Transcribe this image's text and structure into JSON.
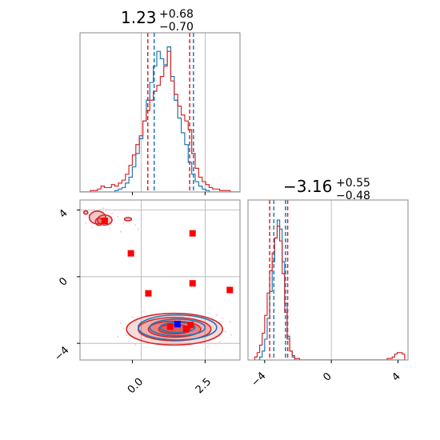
{
  "chart_data": {
    "type": "corner",
    "parameters": [
      {
        "title_value": "1.23",
        "title_plus": "+0.68",
        "title_minus": "−0.70",
        "range": [
          -1.8,
          3.7
        ],
        "ticks": [
          {
            "value": 0.0,
            "label": "0.0"
          },
          {
            "value": 2.5,
            "label": "2.5"
          }
        ],
        "hist_red": {
          "start": -1.8,
          "bin": 0.12,
          "counts": [
            0,
            0,
            0,
            0.01,
            0.01,
            0.02,
            0.04,
            0.03,
            0.03,
            0.05,
            0.04,
            0.06,
            0.08,
            0.12,
            0.18,
            0.25,
            0.32,
            0.38,
            0.48,
            0.55,
            0.62,
            0.68,
            0.72,
            0.78,
            0.85,
            0.95,
            0.75,
            0.66,
            0.58,
            0.52,
            0.48,
            0.42,
            0.26,
            0.16,
            0.1,
            0.07,
            0.05,
            0.03,
            0.02,
            0.02,
            0.01,
            0.01,
            0.01,
            0,
            0,
            0
          ]
        },
        "hist_blue": {
          "start": -1.8,
          "bin": 0.12,
          "counts": [
            0,
            0,
            0,
            0,
            0,
            0,
            0,
            0,
            0,
            0,
            0.01,
            0.02,
            0.03,
            0.06,
            0.1,
            0.17,
            0.26,
            0.36,
            0.48,
            0.62,
            0.74,
            0.85,
            0.95,
            0.9,
            0.86,
            0.98,
            0.78,
            0.62,
            0.5,
            0.4,
            0.32,
            0.2,
            0.12,
            0.07,
            0.04,
            0.02,
            0.01,
            0,
            0,
            0,
            0,
            0,
            0,
            0,
            0,
            0
          ]
        },
        "quantiles_red": [
          0.53,
          1.97
        ],
        "quantiles_blue": [
          0.75,
          2.1
        ],
        "grid_lines": [
          0.3,
          2.5
        ]
      },
      {
        "title_value": "−3.16",
        "title_plus": "+0.55",
        "title_minus": "−0.48",
        "range": [
          -5.0,
          4.6
        ],
        "ticks": [
          {
            "value": -4,
            "label": "−4"
          },
          {
            "value": 0,
            "label": "0"
          },
          {
            "value": 4,
            "label": "4"
          }
        ],
        "hist_red": {
          "start": -4.6,
          "bin": 0.15,
          "counts": [
            0.02,
            0.05,
            0.1,
            0.18,
            0.3,
            0.45,
            0.6,
            0.72,
            0.82,
            0.9,
            0.8,
            0.58,
            0.32,
            0.14,
            0.06,
            0.03,
            0.01,
            0.01,
            0,
            0,
            0,
            0,
            0,
            0,
            0,
            0,
            0,
            0,
            0,
            0,
            0,
            0,
            0,
            0,
            0,
            0,
            0,
            0,
            0,
            0,
            0,
            0,
            0,
            0,
            0,
            0,
            0,
            0,
            0,
            0,
            0,
            0,
            0,
            0.01,
            0.01,
            0.02,
            0.04,
            0.05,
            0.05,
            0.04
          ]
        },
        "hist_blue": {
          "start": -4.6,
          "bin": 0.15,
          "counts": [
            0,
            0,
            0.02,
            0.06,
            0.14,
            0.28,
            0.46,
            0.66,
            0.82,
            0.94,
            0.88,
            0.66,
            0.38,
            0.16,
            0.06,
            0.02,
            0,
            0,
            0,
            0,
            0,
            0,
            0,
            0,
            0,
            0,
            0,
            0,
            0,
            0,
            0,
            0,
            0,
            0,
            0,
            0,
            0,
            0,
            0,
            0,
            0,
            0,
            0,
            0,
            0,
            0,
            0,
            0,
            0,
            0,
            0,
            0,
            0,
            0,
            0,
            0,
            0,
            0,
            0,
            0
          ]
        },
        "quantiles_red": [
          -3.7,
          -2.62
        ],
        "quantiles_blue": [
          -3.45,
          -2.75
        ],
        "grid_lines": [
          0
        ]
      }
    ],
    "joint": {
      "x_range": [
        -1.8,
        3.7
      ],
      "y_range": [
        -5.0,
        4.6
      ],
      "y_ticks": [
        {
          "value": 4,
          "label": "4"
        },
        {
          "value": 0,
          "label": "0"
        },
        {
          "value": -4,
          "label": "−4"
        }
      ],
      "grid_x": [
        0.3,
        2.5
      ],
      "grid_y": [
        4,
        0,
        -4
      ],
      "contours_red": [
        {
          "cx": 1.45,
          "cy": -3.15,
          "rx": 1.65,
          "ry": 0.95,
          "alpha": 0.3
        },
        {
          "cx": 1.45,
          "cy": -3.15,
          "rx": 1.25,
          "ry": 0.7,
          "alpha": 0.45
        },
        {
          "cx": 1.45,
          "cy": -3.15,
          "rx": 0.9,
          "ry": 0.48,
          "alpha": 0.6
        },
        {
          "cx": 1.45,
          "cy": -3.15,
          "rx": 0.55,
          "ry": 0.28,
          "alpha": 0.75
        }
      ],
      "contours_blue": [
        {
          "cx": 1.55,
          "cy": -3.05,
          "rx": 1.35,
          "ry": 0.75
        },
        {
          "cx": 1.55,
          "cy": -3.05,
          "rx": 0.95,
          "ry": 0.5
        },
        {
          "cx": 1.55,
          "cy": -3.05,
          "rx": 0.6,
          "ry": 0.3
        }
      ],
      "island_contours_red": [
        {
          "cx": -1.2,
          "cy": 3.55,
          "rx": 0.28,
          "ry": 0.38
        },
        {
          "cx": -1.15,
          "cy": 3.3,
          "rx": 0.12,
          "ry": 0.22
        },
        {
          "cx": -0.95,
          "cy": 3.4,
          "rx": 0.25,
          "ry": 0.3
        },
        {
          "cx": -0.15,
          "cy": 3.45,
          "rx": 0.12,
          "ry": 0.1
        },
        {
          "cx": -1.6,
          "cy": 3.85,
          "rx": 0.07,
          "ry": 0.1
        }
      ],
      "markers_red": [
        {
          "x": 2.07,
          "y": 2.6
        },
        {
          "x": -0.05,
          "y": 1.4
        },
        {
          "x": 2.07,
          "y": -0.4
        },
        {
          "x": 0.55,
          "y": -1.0
        },
        {
          "x": 3.35,
          "y": -0.8
        },
        {
          "x": -0.95,
          "y": 3.35
        },
        {
          "x": 2.0,
          "y": -2.9
        },
        {
          "x": 1.85,
          "y": -3.15
        },
        {
          "x": 1.3,
          "y": -3.0
        }
      ],
      "marker_blue": {
        "x": 1.55,
        "y": -2.85
      },
      "scatter_red": [
        [
          -1.7,
          3.9
        ],
        [
          -1.5,
          3.7
        ],
        [
          -1.3,
          3.95
        ],
        [
          -0.7,
          3.8
        ],
        [
          -0.5,
          3.6
        ],
        [
          -0.3,
          3.2
        ],
        [
          -0.8,
          2.9
        ],
        [
          -1.4,
          2.95
        ],
        [
          0.1,
          3.1
        ],
        [
          0.3,
          3.5
        ],
        [
          -1.6,
          3.2
        ],
        [
          -0.4,
          2.7
        ],
        [
          0.2,
          2.85
        ],
        [
          -1.0,
          4.1
        ],
        [
          -0.2,
          4.0
        ],
        [
          -0.4,
          -2.8
        ],
        [
          -0.2,
          -3.5
        ],
        [
          0.0,
          -2.4
        ],
        [
          3.2,
          -3.3
        ],
        [
          3.35,
          -2.7
        ],
        [
          3.0,
          -3.9
        ],
        [
          -0.1,
          -3.9
        ],
        [
          0.1,
          -4.1
        ],
        [
          2.9,
          -2.3
        ],
        [
          -0.3,
          -3.1
        ],
        [
          3.4,
          -3.5
        ],
        [
          0.4,
          -2.1
        ],
        [
          2.6,
          -4.2
        ],
        [
          -0.5,
          -3.6
        ],
        [
          3.1,
          -2.5
        ]
      ]
    }
  }
}
